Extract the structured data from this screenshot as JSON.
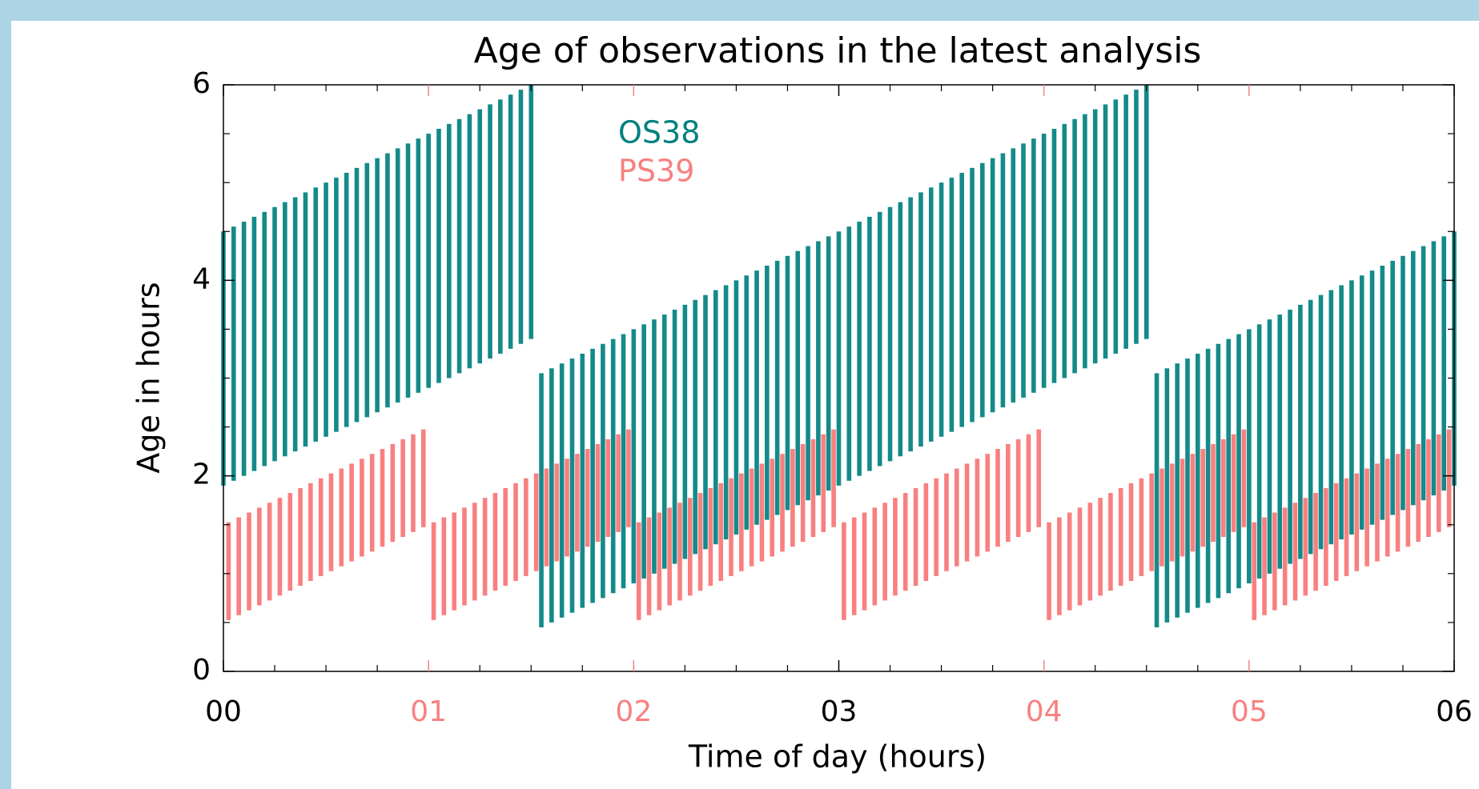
{
  "chart_data": {
    "type": "range_bar",
    "title": "Age of observations in the latest analysis",
    "xlabel": "Time of day (hours)",
    "ylabel": "Age in hours",
    "xlim": [
      0,
      6
    ],
    "ylim": [
      0,
      6
    ],
    "xticks": [
      {
        "value": 0,
        "label": "00"
      },
      {
        "value": 1,
        "label": "01"
      },
      {
        "value": 2,
        "label": "02"
      },
      {
        "value": 3,
        "label": "03"
      },
      {
        "value": 4,
        "label": "04"
      },
      {
        "value": 5,
        "label": "05"
      },
      {
        "value": 6,
        "label": "06"
      }
    ],
    "xtick_colors": [
      "#000000",
      "#f88080",
      "#f88080",
      "#000000",
      "#f88080",
      "#f88080",
      "#000000"
    ],
    "xminor": [
      0.25,
      0.5,
      0.75,
      1.25,
      1.5,
      1.75,
      2.25,
      2.5,
      2.75,
      3.25,
      3.5,
      3.75,
      4.25,
      4.5,
      4.75,
      5.25,
      5.5,
      5.75
    ],
    "yticks": [
      0,
      2,
      4,
      6
    ],
    "yminor": [
      0.5,
      1,
      1.5,
      2.5,
      3,
      3.5,
      4.5,
      5,
      5.5
    ],
    "series": [
      {
        "name": "PS39",
        "color": "#f88080",
        "x": [
          0.025,
          0.075,
          0.125,
          0.175,
          0.225,
          0.275,
          0.325,
          0.375,
          0.425,
          0.475,
          0.525,
          0.575,
          0.625,
          0.675,
          0.725,
          0.775,
          0.825,
          0.875,
          0.925,
          0.975,
          1.025,
          1.075,
          1.125,
          1.175,
          1.225,
          1.275,
          1.325,
          1.375,
          1.425,
          1.475,
          1.525,
          1.575,
          1.625,
          1.675,
          1.725,
          1.775,
          1.825,
          1.875,
          1.925,
          1.975,
          2.025,
          2.075,
          2.125,
          2.175,
          2.225,
          2.275,
          2.325,
          2.375,
          2.425,
          2.475,
          2.525,
          2.575,
          2.625,
          2.675,
          2.725,
          2.775,
          2.825,
          2.875,
          2.925,
          2.975,
          3.025,
          3.075,
          3.125,
          3.175,
          3.225,
          3.275,
          3.325,
          3.375,
          3.425,
          3.475,
          3.525,
          3.575,
          3.625,
          3.675,
          3.725,
          3.775,
          3.825,
          3.875,
          3.925,
          3.975,
          4.025,
          4.075,
          4.125,
          4.175,
          4.225,
          4.275,
          4.325,
          4.375,
          4.425,
          4.475,
          4.525,
          4.575,
          4.625,
          4.675,
          4.725,
          4.775,
          4.825,
          4.875,
          4.925,
          4.975,
          5.025,
          5.075,
          5.125,
          5.175,
          5.225,
          5.275,
          5.325,
          5.375,
          5.425,
          5.475,
          5.525,
          5.575,
          5.625,
          5.675,
          5.725,
          5.775,
          5.825,
          5.875,
          5.925,
          5.975
        ],
        "low": [
          0.525,
          0.575,
          0.625,
          0.675,
          0.725,
          0.775,
          0.825,
          0.875,
          0.925,
          0.975,
          1.025,
          1.075,
          1.125,
          1.175,
          1.225,
          1.275,
          1.325,
          1.375,
          1.425,
          1.475,
          0.525,
          0.575,
          0.625,
          0.675,
          0.725,
          0.775,
          0.825,
          0.875,
          0.925,
          0.975,
          1.025,
          1.075,
          1.125,
          1.175,
          1.225,
          1.275,
          1.325,
          1.375,
          1.425,
          1.475,
          0.525,
          0.575,
          0.625,
          0.675,
          0.725,
          0.775,
          0.825,
          0.875,
          0.925,
          0.975,
          1.025,
          1.075,
          1.125,
          1.175,
          1.225,
          1.275,
          1.325,
          1.375,
          1.425,
          1.475,
          0.525,
          0.575,
          0.625,
          0.675,
          0.725,
          0.775,
          0.825,
          0.875,
          0.925,
          0.975,
          1.025,
          1.075,
          1.125,
          1.175,
          1.225,
          1.275,
          1.325,
          1.375,
          1.425,
          1.475,
          0.525,
          0.575,
          0.625,
          0.675,
          0.725,
          0.775,
          0.825,
          0.875,
          0.925,
          0.975,
          1.025,
          1.075,
          1.125,
          1.175,
          1.225,
          1.275,
          1.325,
          1.375,
          1.425,
          1.475,
          0.525,
          0.575,
          0.625,
          0.675,
          0.725,
          0.775,
          0.825,
          0.875,
          0.925,
          0.975,
          1.025,
          1.075,
          1.125,
          1.175,
          1.225,
          1.275,
          1.325,
          1.375,
          1.425,
          1.475
        ],
        "high": [
          1.525,
          1.575,
          1.625,
          1.675,
          1.725,
          1.775,
          1.825,
          1.875,
          1.925,
          1.975,
          2.025,
          2.075,
          2.125,
          2.175,
          2.225,
          2.275,
          2.325,
          2.375,
          2.425,
          2.475,
          1.525,
          1.575,
          1.625,
          1.675,
          1.725,
          1.775,
          1.825,
          1.875,
          1.925,
          1.975,
          2.025,
          2.075,
          2.125,
          2.175,
          2.225,
          2.275,
          2.325,
          2.375,
          2.425,
          2.475,
          1.525,
          1.575,
          1.625,
          1.675,
          1.725,
          1.775,
          1.825,
          1.875,
          1.925,
          1.975,
          2.025,
          2.075,
          2.125,
          2.175,
          2.225,
          2.275,
          2.325,
          2.375,
          2.425,
          2.475,
          1.525,
          1.575,
          1.625,
          1.675,
          1.725,
          1.775,
          1.825,
          1.875,
          1.925,
          1.975,
          2.025,
          2.075,
          2.125,
          2.175,
          2.225,
          2.275,
          2.325,
          2.375,
          2.425,
          2.475,
          1.525,
          1.575,
          1.625,
          1.675,
          1.725,
          1.775,
          1.825,
          1.875,
          1.925,
          1.975,
          2.025,
          2.075,
          2.125,
          2.175,
          2.225,
          2.275,
          2.325,
          2.375,
          2.425,
          2.475,
          1.525,
          1.575,
          1.625,
          1.675,
          1.725,
          1.775,
          1.825,
          1.875,
          1.925,
          1.975,
          2.025,
          2.075,
          2.125,
          2.175,
          2.225,
          2.275,
          2.325,
          2.375,
          2.425,
          2.475
        ]
      },
      {
        "name": "OS38",
        "color": "#008080",
        "x": [
          0,
          0.05,
          0.1,
          0.15,
          0.2,
          0.25,
          0.3,
          0.35,
          0.4,
          0.45,
          0.5,
          0.55,
          0.6,
          0.65,
          0.7,
          0.75,
          0.8,
          0.85,
          0.9,
          0.95,
          1,
          1.05,
          1.1,
          1.15,
          1.2,
          1.25,
          1.3,
          1.35,
          1.4,
          1.45,
          1.5,
          1.55,
          1.6,
          1.65,
          1.7,
          1.75,
          1.8,
          1.85,
          1.9,
          1.95,
          2,
          2.05,
          2.1,
          2.15,
          2.2,
          2.25,
          2.3,
          2.35,
          2.4,
          2.45,
          2.5,
          2.55,
          2.6,
          2.65,
          2.7,
          2.75,
          2.8,
          2.85,
          2.9,
          2.95,
          3,
          3.05,
          3.1,
          3.15,
          3.2,
          3.25,
          3.3,
          3.35,
          3.4,
          3.45,
          3.5,
          3.55,
          3.6,
          3.65,
          3.7,
          3.75,
          3.8,
          3.85,
          3.9,
          3.95,
          4,
          4.05,
          4.1,
          4.15,
          4.2,
          4.25,
          4.3,
          4.35,
          4.4,
          4.45,
          4.5,
          4.55,
          4.6,
          4.65,
          4.7,
          4.75,
          4.8,
          4.85,
          4.9,
          4.95,
          5,
          5.05,
          5.1,
          5.15,
          5.2,
          5.25,
          5.3,
          5.35,
          5.4,
          5.45,
          5.5,
          5.55,
          5.6,
          5.65,
          5.7,
          5.75,
          5.8,
          5.85,
          5.9,
          5.95,
          6
        ],
        "low": [
          1.9,
          1.95,
          2,
          2.05,
          2.1,
          2.15,
          2.2,
          2.25,
          2.3,
          2.35,
          2.4,
          2.45,
          2.5,
          2.55,
          2.6,
          2.65,
          2.7,
          2.75,
          2.8,
          2.85,
          2.9,
          2.95,
          3,
          3.05,
          3.1,
          3.15,
          3.2,
          3.25,
          3.3,
          3.35,
          3.4,
          0.45,
          0.5,
          0.55,
          0.6,
          0.65,
          0.7,
          0.75,
          0.8,
          0.85,
          0.9,
          0.95,
          1,
          1.05,
          1.1,
          1.15,
          1.2,
          1.25,
          1.3,
          1.35,
          1.4,
          1.45,
          1.5,
          1.55,
          1.6,
          1.65,
          1.7,
          1.75,
          1.8,
          1.85,
          1.9,
          1.95,
          2,
          2.05,
          2.1,
          2.15,
          2.2,
          2.25,
          2.3,
          2.35,
          2.4,
          2.45,
          2.5,
          2.55,
          2.6,
          2.65,
          2.7,
          2.75,
          2.8,
          2.85,
          2.9,
          2.95,
          3,
          3.05,
          3.1,
          3.15,
          3.2,
          3.25,
          3.3,
          3.35,
          3.4,
          0.45,
          0.5,
          0.55,
          0.6,
          0.65,
          0.7,
          0.75,
          0.8,
          0.85,
          0.9,
          0.95,
          1,
          1.05,
          1.1,
          1.15,
          1.2,
          1.25,
          1.3,
          1.35,
          1.4,
          1.45,
          1.5,
          1.55,
          1.6,
          1.65,
          1.7,
          1.75,
          1.8,
          1.85,
          1.9
        ],
        "high": [
          4.5,
          4.55,
          4.6,
          4.65,
          4.7,
          4.75,
          4.8,
          4.85,
          4.9,
          4.95,
          5,
          5.05,
          5.1,
          5.15,
          5.2,
          5.25,
          5.3,
          5.35,
          5.4,
          5.45,
          5.5,
          5.55,
          5.6,
          5.65,
          5.7,
          5.75,
          5.8,
          5.85,
          5.9,
          5.95,
          6,
          3.05,
          3.1,
          3.15,
          3.2,
          3.25,
          3.3,
          3.35,
          3.4,
          3.45,
          3.5,
          3.55,
          3.6,
          3.65,
          3.7,
          3.75,
          3.8,
          3.85,
          3.9,
          3.95,
          4,
          4.05,
          4.1,
          4.15,
          4.2,
          4.25,
          4.3,
          4.35,
          4.4,
          4.45,
          4.5,
          4.55,
          4.6,
          4.65,
          4.7,
          4.75,
          4.8,
          4.85,
          4.9,
          4.95,
          5,
          5.05,
          5.1,
          5.15,
          5.2,
          5.25,
          5.3,
          5.35,
          5.4,
          5.45,
          5.5,
          5.55,
          5.6,
          5.65,
          5.7,
          5.75,
          5.8,
          5.85,
          5.9,
          5.95,
          6,
          3.05,
          3.1,
          3.15,
          3.2,
          3.25,
          3.3,
          3.35,
          3.4,
          3.45,
          3.5,
          3.55,
          3.6,
          3.65,
          3.7,
          3.75,
          3.8,
          3.85,
          3.9,
          3.95,
          4,
          4.05,
          4.1,
          4.15,
          4.2,
          4.25,
          4.3,
          4.35,
          4.4,
          4.45,
          4.5
        ]
      }
    ]
  }
}
